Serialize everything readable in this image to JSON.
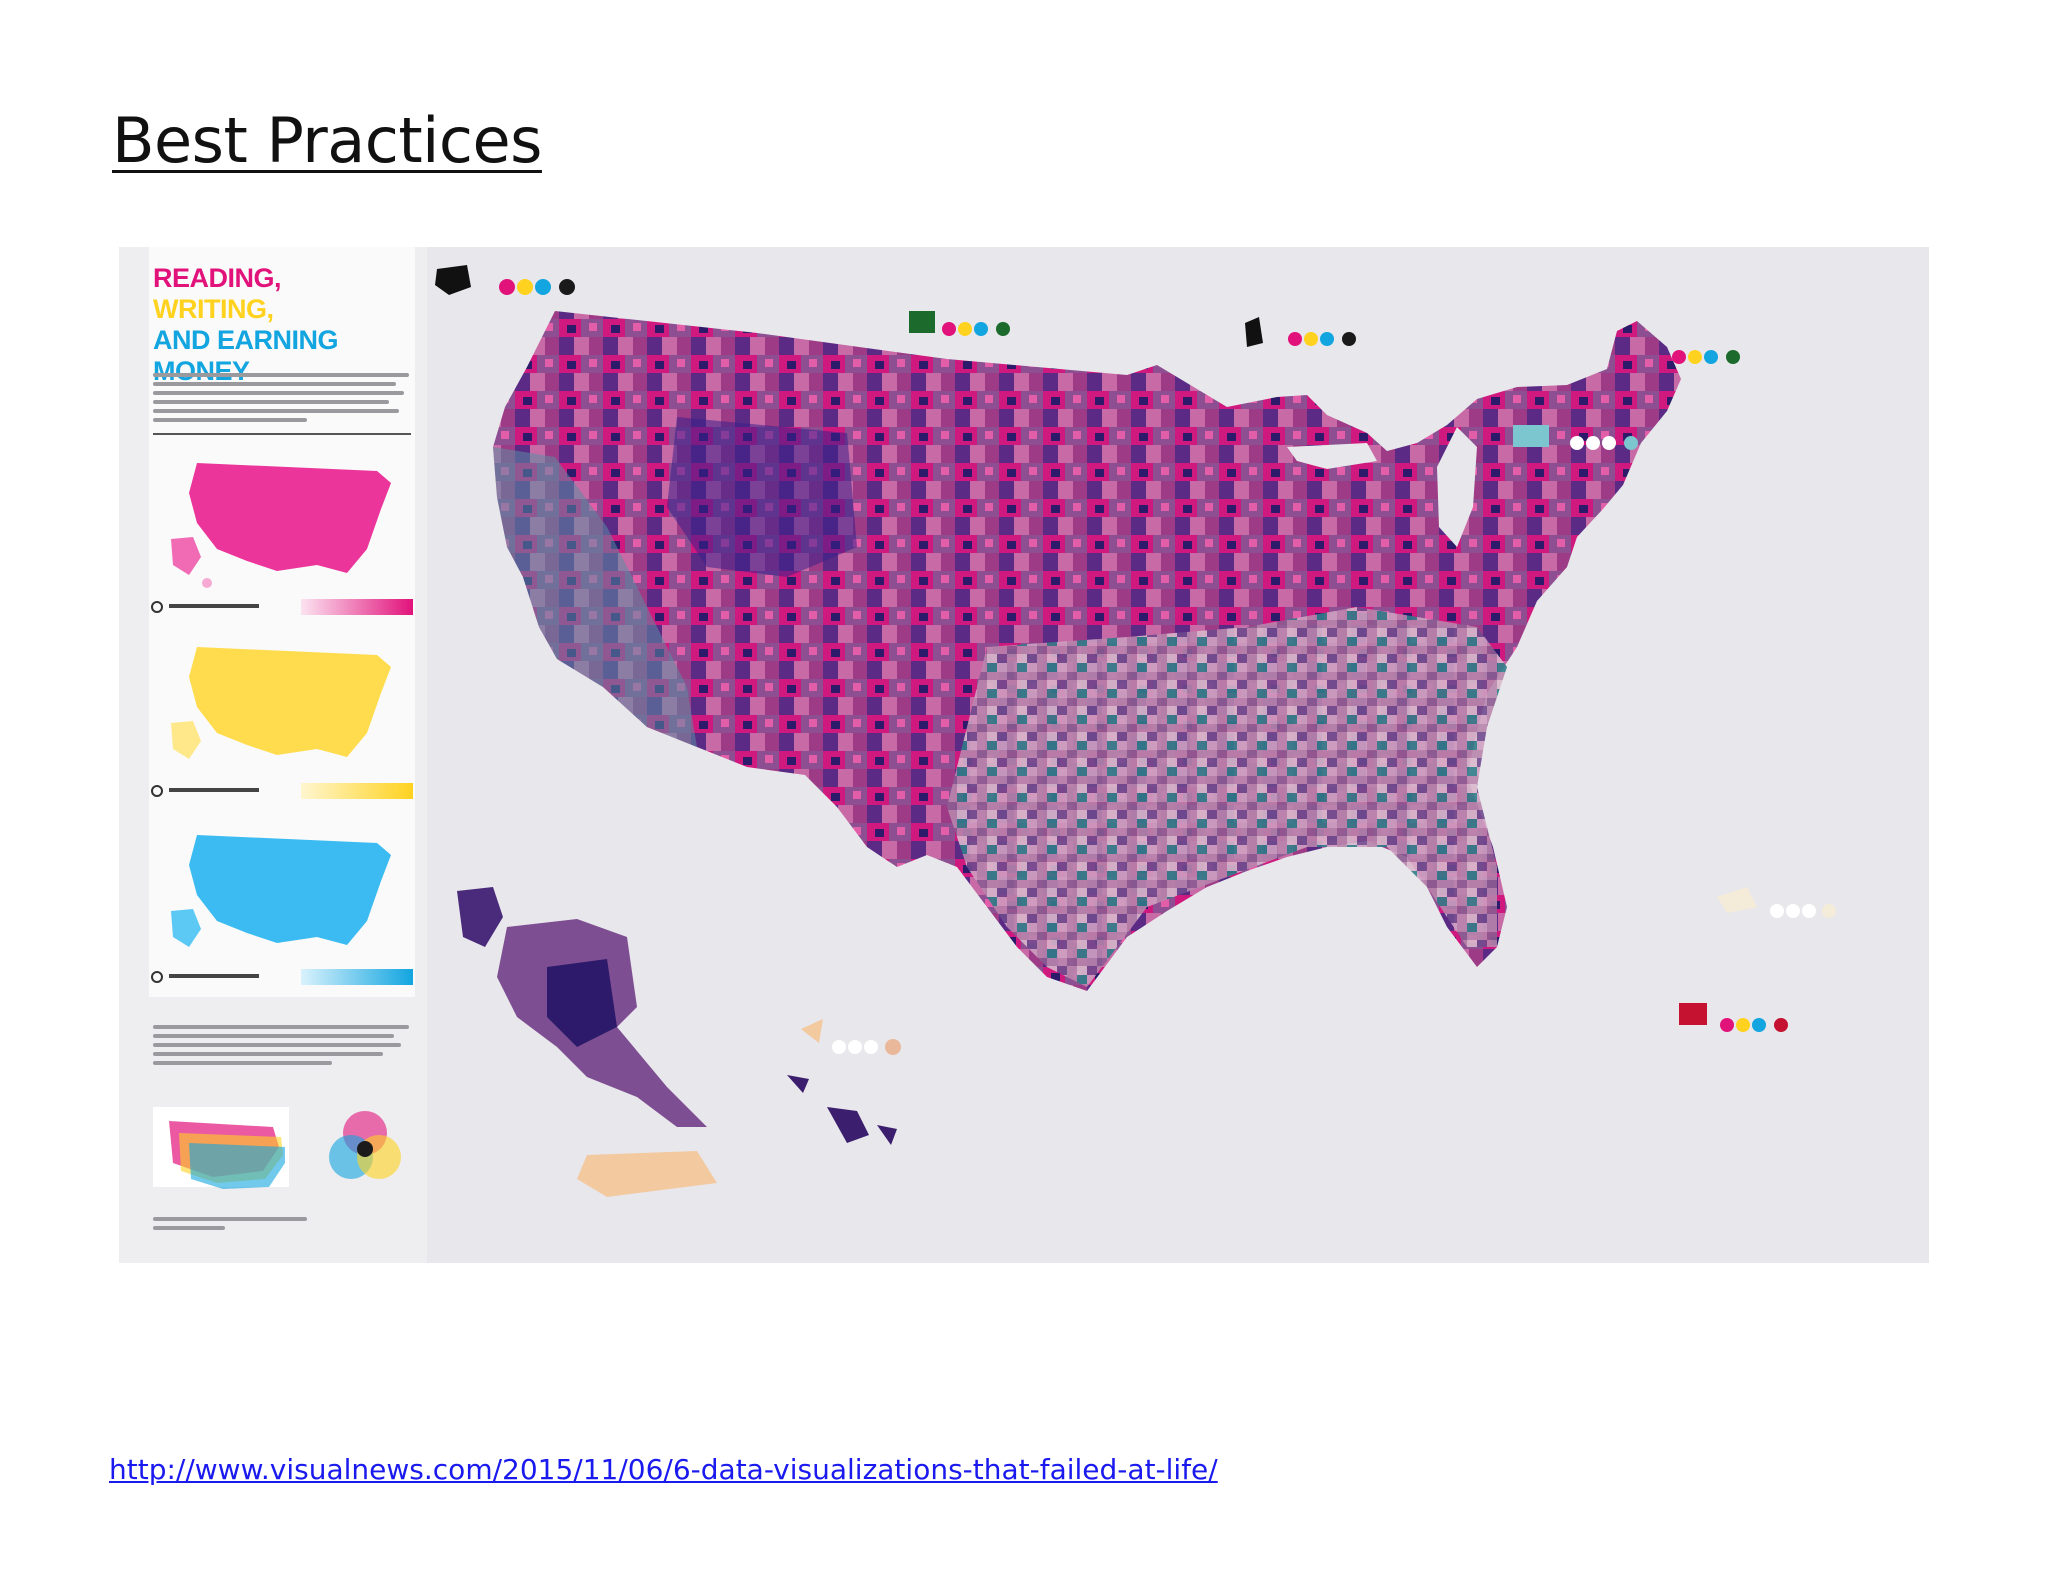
{
  "slide": {
    "title": "Best Practices",
    "source_link": "http://www.visualnews.com/2015/11/06/6-data-visualizations-that-failed-at-life/"
  },
  "poster": {
    "headline": [
      "READING,",
      "WRITING,",
      "AND EARNING MONEY"
    ],
    "headline_colors": [
      "#e2127b",
      "#ffd21f",
      "#12a5e0"
    ],
    "legend_panels": [
      {
        "map_color": "#e8128a",
        "icon": "circle-a-icon"
      },
      {
        "map_color": "#ffd83a",
        "icon": "circle-b-icon"
      },
      {
        "map_color": "#26b4ef",
        "icon": "circle-c-icon"
      }
    ],
    "overlay_palette": [
      "#e2127b",
      "#ffd21f",
      "#12a5e0",
      "#2b0f5e"
    ]
  }
}
